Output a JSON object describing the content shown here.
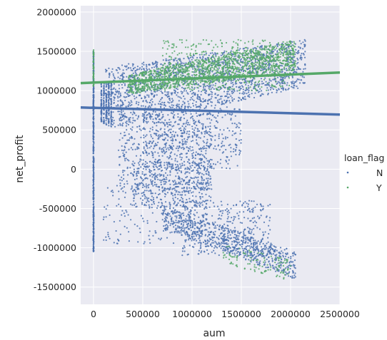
{
  "chart_data": {
    "type": "scatter",
    "xlabel": "aum",
    "ylabel": "net_profit",
    "xlim": [
      -130000,
      2500000
    ],
    "ylim": [
      -1720000,
      2080000
    ],
    "xticks": [
      0,
      500000,
      1000000,
      1500000,
      2000000,
      2500000
    ],
    "xtick_labels": [
      "0",
      "500000",
      "1000000",
      "1500000",
      "2000000",
      "2500000"
    ],
    "yticks": [
      -1500000,
      -1000000,
      -500000,
      0,
      500000,
      1000000,
      1500000,
      2000000
    ],
    "ytick_labels": [
      "-1500000",
      "-1000000",
      "-500000",
      "0",
      "500000",
      "1000000",
      "1500000",
      "2000000"
    ],
    "grid": true,
    "legend": {
      "title": "loan_flag",
      "placement": "right",
      "entries": [
        "N",
        "Y"
      ]
    },
    "colors": {
      "N": "#4C72B0",
      "Y": "#55A868",
      "background": "#EAEAF2",
      "grid": "#FFFFFF"
    },
    "series": [
      {
        "name": "N",
        "color": "#4C72B0",
        "regression": {
          "x": [
            -130000,
            2500000
          ],
          "y": [
            785000,
            695000
          ]
        },
        "point_groups": [
          {
            "shape": "column",
            "x": 0,
            "y": [
              -1050000,
              1500000
            ],
            "n": 500
          },
          {
            "shape": "column",
            "x": 80000,
            "y": [
              600000,
              1100000
            ],
            "n": 70
          },
          {
            "shape": "column",
            "x": 105000,
            "y": [
              580000,
              1100000
            ],
            "n": 60
          },
          {
            "shape": "column",
            "x": 130000,
            "y": [
              560000,
              1100000
            ],
            "n": 55
          },
          {
            "shape": "column",
            "x": 155000,
            "y": [
              550000,
              1100000
            ],
            "n": 50
          },
          {
            "shape": "column",
            "x": 180000,
            "y": [
              540000,
              1100000
            ],
            "n": 45
          },
          {
            "shape": "line_band",
            "x": [
              120000,
              2150000
            ],
            "y_start": [
              500000,
              1300000
            ],
            "y_end": [
              1050000,
              1650000
            ],
            "n": 1700
          },
          {
            "shape": "cloud",
            "x": [
              250000,
              1200000
            ],
            "y": [
              -300000,
              700000
            ],
            "n": 500
          },
          {
            "shape": "cloud",
            "x": [
              500000,
              1500000
            ],
            "y": [
              0,
              800000
            ],
            "n": 450
          },
          {
            "shape": "cloud",
            "x": [
              400000,
              1200000
            ],
            "y": [
              -500000,
              100000
            ],
            "n": 400
          },
          {
            "shape": "line_band",
            "x": [
              700000,
              2050000
            ],
            "y_start": [
              -450000,
              -750000
            ],
            "y_end": [
              -1050000,
              -1400000
            ],
            "n": 700
          },
          {
            "shape": "cloud",
            "x": [
              900000,
              1800000
            ],
            "y": [
              -1100000,
              -400000
            ],
            "n": 350
          },
          {
            "shape": "cloud",
            "x": [
              100000,
              900000
            ],
            "y": [
              -950000,
              -200000
            ],
            "n": 130
          }
        ]
      },
      {
        "name": "Y",
        "color": "#55A868",
        "regression": {
          "x": [
            -130000,
            2500000
          ],
          "y": [
            1095000,
            1230000
          ]
        },
        "point_groups": [
          {
            "shape": "column",
            "x": 0,
            "y": [
              1050000,
              1520000
            ],
            "n": 60
          },
          {
            "shape": "line_band",
            "x": [
              350000,
              2050000
            ],
            "y_start": [
              950000,
              1200000
            ],
            "y_end": [
              1250000,
              1650000
            ],
            "n": 1300
          },
          {
            "shape": "cloud",
            "x": [
              700000,
              2000000
            ],
            "y": [
              1000000,
              1650000
            ],
            "n": 400
          },
          {
            "shape": "line_band",
            "x": [
              1300000,
              2000000
            ],
            "y_start": [
              -950000,
              -1200000
            ],
            "y_end": [
              -1150000,
              -1420000
            ],
            "n": 110
          }
        ]
      }
    ]
  }
}
